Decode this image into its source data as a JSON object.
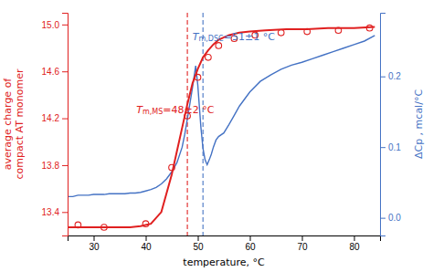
{
  "chart_data": {
    "type": "line",
    "xlabel": "temperature, °C",
    "ylabel": "average charge of\ncompact AT monomer",
    "y2label": "ΔCp , mcal/°C",
    "xlim": [
      25,
      85
    ],
    "xticks": [
      30,
      40,
      50,
      60,
      70,
      80
    ],
    "ylim": [
      13.2,
      15.1
    ],
    "yticks": [
      13.4,
      13.8,
      14.2,
      14.6,
      {
        "value": 15.0,
        "label": "15.0"
      }
    ],
    "y2lim": [
      -0.025,
      0.29
    ],
    "y2ticks": [
      {
        "value": 0.0,
        "label": "0.0"
      },
      0.1,
      0.2
    ],
    "grid": false,
    "series": [
      {
        "type": "line",
        "axis": "y2",
        "color": "#4472c4",
        "x": [
          25,
          26,
          27,
          28,
          29,
          30,
          31,
          32,
          33,
          34,
          35,
          36,
          37,
          38,
          39,
          40,
          41,
          42,
          43,
          44,
          45,
          46,
          47,
          47.5,
          48,
          48.5,
          49,
          49.3,
          49.6,
          50.0,
          50.3,
          50.6,
          51.0,
          51.4,
          51.8,
          52.2,
          52.6,
          53.0,
          53.5,
          54,
          55,
          56,
          57,
          58,
          59,
          60,
          62,
          64,
          66,
          68,
          70,
          72,
          74,
          76,
          78,
          80,
          82,
          84
        ],
        "values": [
          0.03,
          0.03,
          0.032,
          0.032,
          0.032,
          0.033,
          0.033,
          0.033,
          0.034,
          0.034,
          0.034,
          0.034,
          0.035,
          0.035,
          0.036,
          0.038,
          0.04,
          0.043,
          0.048,
          0.055,
          0.065,
          0.078,
          0.1,
          0.118,
          0.14,
          0.162,
          0.185,
          0.2,
          0.215,
          0.188,
          0.158,
          0.128,
          0.098,
          0.082,
          0.075,
          0.082,
          0.09,
          0.1,
          0.11,
          0.115,
          0.12,
          0.132,
          0.145,
          0.158,
          0.168,
          0.178,
          0.193,
          0.202,
          0.21,
          0.216,
          0.22,
          0.225,
          0.23,
          0.235,
          0.24,
          0.245,
          0.25,
          0.258
        ]
      },
      {
        "type": "scatter",
        "color": "#e02020",
        "marker": "open-circle",
        "x": [
          27,
          32,
          40,
          45,
          48,
          50,
          52,
          54,
          57,
          61,
          66,
          71,
          77,
          83
        ],
        "values": [
          13.29,
          13.27,
          13.3,
          13.78,
          14.22,
          14.55,
          14.72,
          14.82,
          14.88,
          14.91,
          14.93,
          14.94,
          14.95,
          14.97
        ]
      },
      {
        "type": "line",
        "color": "#e02020",
        "x": [
          25,
          27,
          29,
          31,
          33,
          35,
          37,
          39,
          41,
          43,
          45,
          46,
          47,
          48,
          49,
          50,
          51,
          52,
          53,
          54,
          56,
          58,
          60,
          63,
          67,
          71,
          75,
          80,
          84
        ],
        "values": [
          13.27,
          13.27,
          13.27,
          13.27,
          13.27,
          13.27,
          13.27,
          13.28,
          13.3,
          13.4,
          13.72,
          13.92,
          14.12,
          14.32,
          14.5,
          14.62,
          14.72,
          14.78,
          14.83,
          14.87,
          14.91,
          14.93,
          14.94,
          14.95,
          14.96,
          14.96,
          14.97,
          14.97,
          14.98
        ]
      }
    ],
    "vlines": [
      {
        "x": 48,
        "color": "#e02020",
        "line_style": "dashed"
      },
      {
        "x": 51,
        "color": "#4472c4",
        "line_style": "dashed"
      }
    ],
    "annotations": [
      {
        "text": "Tm,DSC=51±1 °C",
        "color": "#4472c4"
      },
      {
        "text": "Tm,MS=48±2 °C",
        "color": "#e02020"
      }
    ]
  }
}
